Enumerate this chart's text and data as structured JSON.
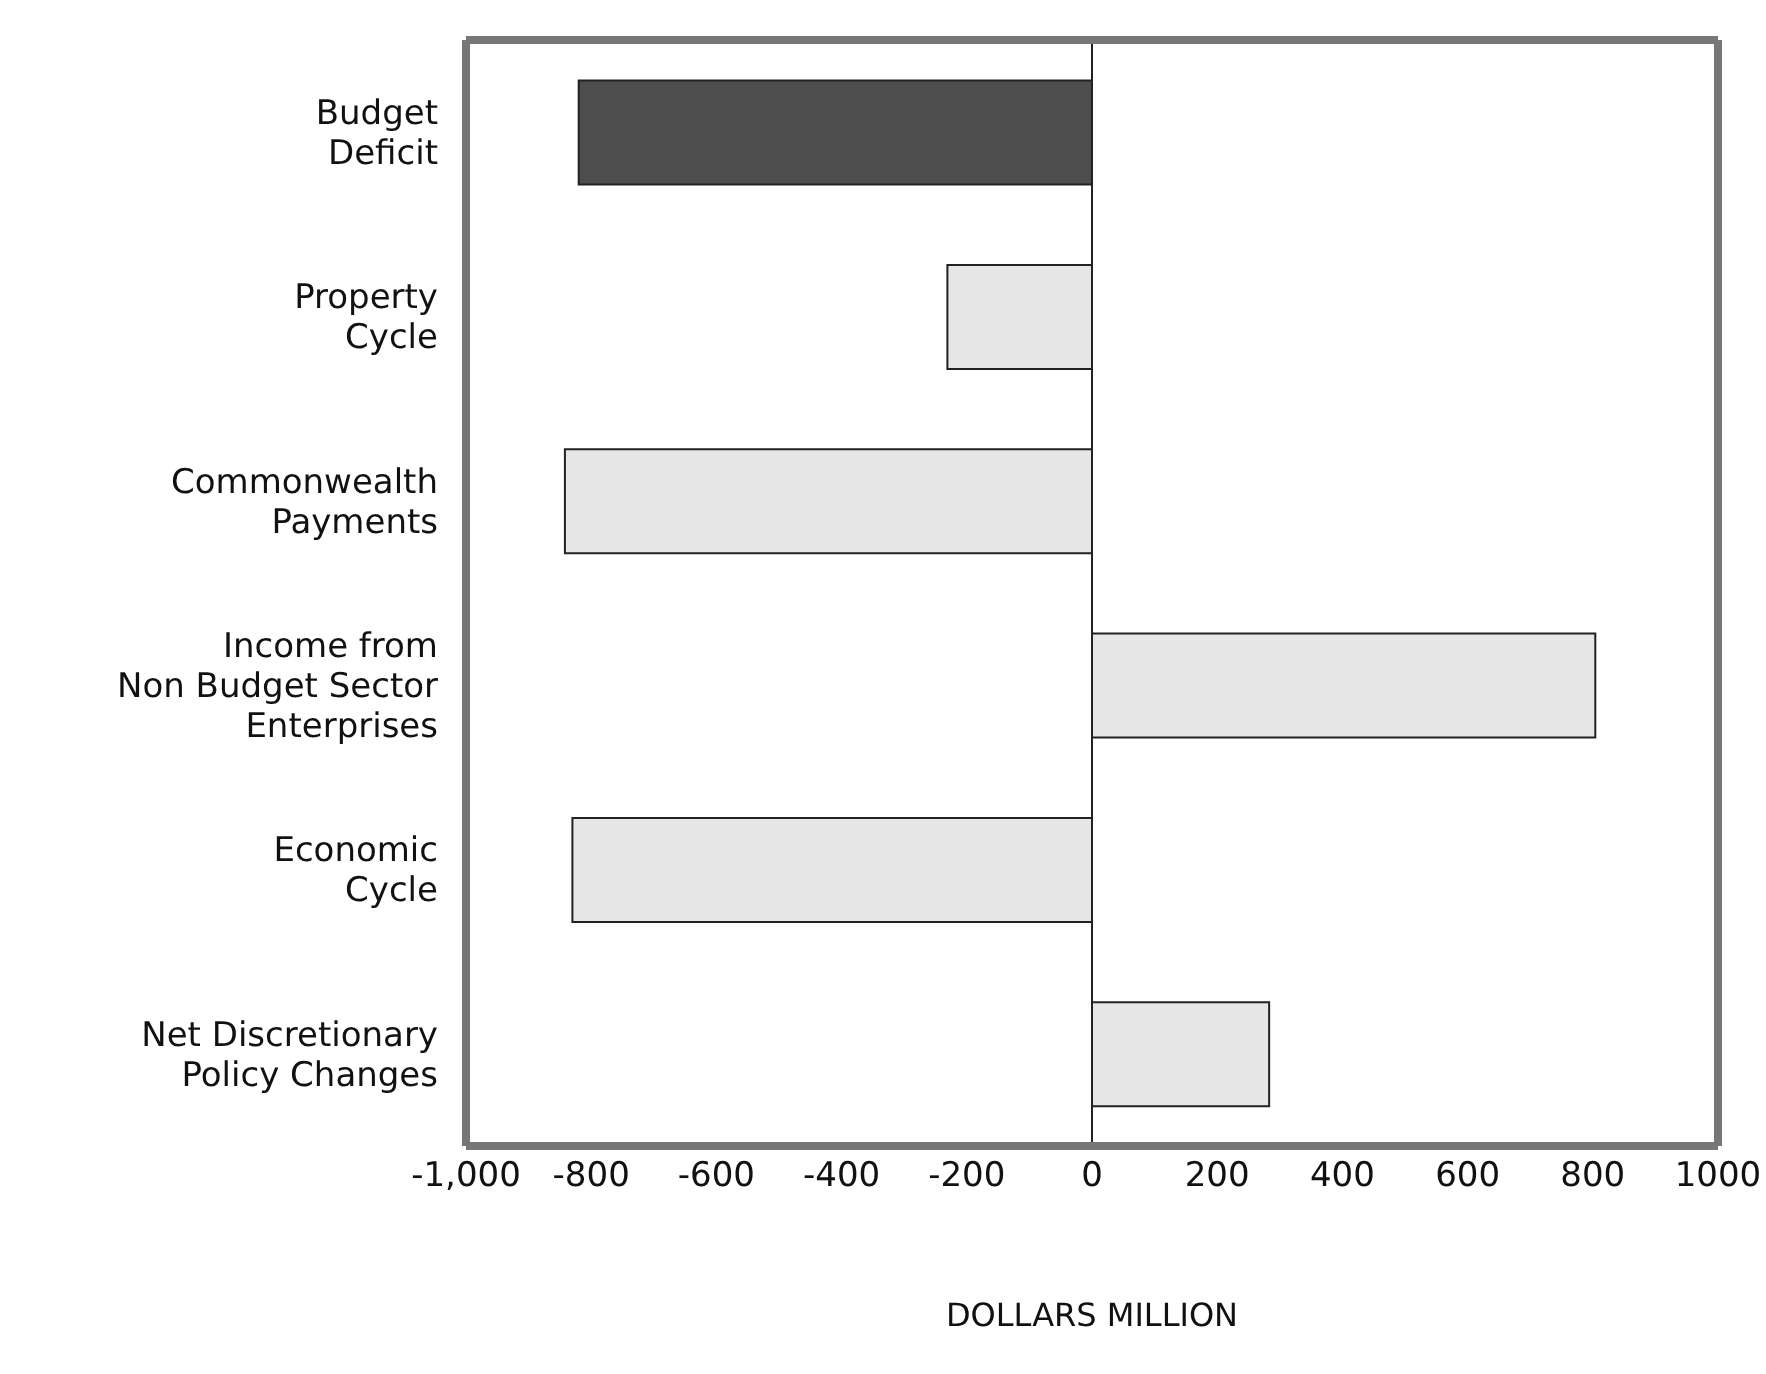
{
  "chart_data": {
    "type": "bar",
    "orientation": "horizontal",
    "xlabel": "DOLLARS MILLION",
    "categories": [
      "Budget\nDeficit",
      "Property\nCycle",
      "Commonwealth\nPayments",
      "Income from\nNon Budget Sector\nEnterprises",
      "Economic\nCycle",
      "Net Discretionary\nPolicy Changes"
    ],
    "values": [
      -820,
      -231,
      -842,
      804,
      -830,
      283
    ],
    "colors": [
      "#4d4d4d",
      "#e6e6e6",
      "#e6e6e6",
      "#e6e6e6",
      "#e6e6e6",
      "#e6e6e6"
    ],
    "xlim": [
      -1000,
      1000
    ],
    "xticks": [
      {
        "value": -1000,
        "label": "-1,000"
      },
      -800,
      -600,
      -400,
      -200,
      0,
      200,
      400,
      600,
      800,
      1000
    ],
    "ref_lines": [
      {
        "axis": "x",
        "value": 0
      }
    ],
    "grid": false
  }
}
